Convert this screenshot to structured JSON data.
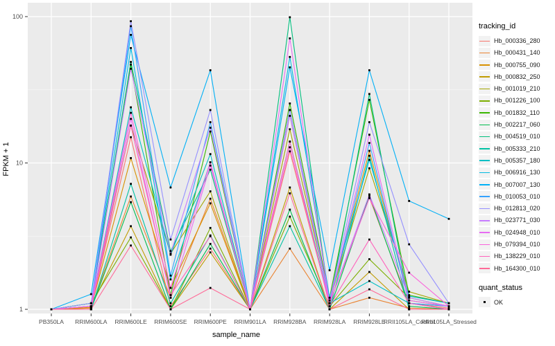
{
  "figure": {
    "panel_bg": "#EBEBEB",
    "grid_major_color": "#FFFFFF",
    "grid_minor_color": "#F7F7F7",
    "tick_label_color": "#4D4D4D",
    "tick_mark_color": "#333333",
    "point_color": "#000000"
  },
  "axes": {
    "x_title": "sample_name",
    "y_title": "FPKM + 1",
    "y_tick_labels": [
      "1",
      "10",
      "100"
    ]
  },
  "legend": {
    "tracking_title": "tracking_id",
    "quant_title": "quant_status",
    "quant_items": [
      {
        "label": "OK",
        "marker": "black-square"
      }
    ]
  },
  "chart_data": {
    "type": "line",
    "title": "",
    "xlabel": "sample_name",
    "ylabel": "FPKM + 1",
    "y_scale": "log10",
    "ylim": [
      1,
      100
    ],
    "y_major_ticks": [
      1,
      10,
      100
    ],
    "y_minor_ticks": [
      3.162,
      31.62
    ],
    "grid": "major-and-minor",
    "legend_position": "right",
    "marker": "small black square (quant_status OK)",
    "categories": [
      "PB350LA",
      "RRIM600LA",
      "RRIM600LE",
      "RRIM600SE",
      "RRIM600PE",
      "RRIM901LA",
      "RRIM928BA",
      "RRIM928LA",
      "RRIM928LE",
      "RRII105LA_Control",
      "RRII105LA_Stressed"
    ],
    "series": [
      {
        "name": "Hb_000336_280",
        "color": "#F8766D",
        "values": [
          1.0,
          1.02,
          15.0,
          1.05,
          2.6,
          1.0,
          12.0,
          1.1,
          5.8,
          1.1,
          1.02
        ]
      },
      {
        "name": "Hb_000431_140",
        "color": "#EA8331",
        "values": [
          1.0,
          1.02,
          5.9,
          1.2,
          5.7,
          1.0,
          2.6,
          1.0,
          1.2,
          1.02,
          1.0
        ]
      },
      {
        "name": "Hb_000755_090",
        "color": "#D89000",
        "values": [
          1.0,
          1.03,
          10.8,
          1.4,
          5.3,
          1.0,
          21.0,
          1.1,
          12.1,
          1.15,
          1.05
        ]
      },
      {
        "name": "Hb_000832_250",
        "color": "#C09B00",
        "values": [
          1.0,
          1.05,
          3.7,
          1.0,
          2.45,
          1.0,
          6.8,
          1.0,
          1.8,
          1.0,
          1.0
        ]
      },
      {
        "name": "Hb_001019_210",
        "color": "#A3A500",
        "values": [
          1.0,
          1.05,
          18.0,
          2.4,
          6.4,
          1.0,
          17.0,
          1.15,
          9.2,
          1.32,
          1.1
        ]
      },
      {
        "name": "Hb_001226_100",
        "color": "#7CAE00",
        "values": [
          1.0,
          1.1,
          3.1,
          1.0,
          3.6,
          1.0,
          4.3,
          1.05,
          2.2,
          1.2,
          1.05
        ]
      },
      {
        "name": "Hb_001832_110",
        "color": "#39B600",
        "values": [
          1.0,
          1.1,
          47.0,
          1.25,
          16.4,
          1.0,
          25.5,
          1.2,
          27.0,
          1.25,
          1.1
        ]
      },
      {
        "name": "Hb_002217_060",
        "color": "#00BB4E",
        "values": [
          1.0,
          1.0,
          5.4,
          1.0,
          2.8,
          1.0,
          4.8,
          1.0,
          6.0,
          1.05,
          1.0
        ]
      },
      {
        "name": "Hb_004519_010",
        "color": "#00BF7D",
        "values": [
          1.0,
          1.05,
          49.0,
          2.5,
          9.0,
          1.0,
          99.0,
          1.1,
          29.6,
          1.1,
          1.05
        ]
      },
      {
        "name": "Hb_005333_210",
        "color": "#00C1A3",
        "values": [
          1.0,
          1.0,
          7.2,
          1.1,
          3.2,
          1.0,
          3.7,
          1.0,
          11.2,
          1.0,
          1.0
        ]
      },
      {
        "name": "Hb_005357_180",
        "color": "#00BFC4",
        "values": [
          1.0,
          1.05,
          24.0,
          2.36,
          11.5,
          1.0,
          14.0,
          1.1,
          1.56,
          1.1,
          1.0
        ]
      },
      {
        "name": "Hb_006916_130",
        "color": "#00BAE0",
        "values": [
          1.0,
          1.1,
          61.0,
          1.6,
          10.1,
          1.0,
          53.0,
          1.2,
          10.5,
          1.23,
          1.1
        ]
      },
      {
        "name": "Hb_007007_130",
        "color": "#00B0F6",
        "values": [
          1.0,
          1.27,
          75.0,
          6.8,
          43.0,
          1.0,
          45.0,
          1.85,
          43.0,
          5.5,
          4.15
        ]
      },
      {
        "name": "Hb_010053_010",
        "color": "#35A2FF",
        "values": [
          1.0,
          1.05,
          86.0,
          1.7,
          19.0,
          1.0,
          23.0,
          1.1,
          13.7,
          1.1,
          1.05
        ]
      },
      {
        "name": "Hb_012813_020",
        "color": "#9590FF",
        "values": [
          1.0,
          1.1,
          93.0,
          3.0,
          23.0,
          1.0,
          23.0,
          1.15,
          19.0,
          2.78,
          1.1
        ]
      },
      {
        "name": "Hb_023771_030",
        "color": "#C77CFF",
        "values": [
          1.0,
          1.05,
          44.0,
          2.4,
          17.4,
          1.0,
          21.0,
          1.1,
          6.1,
          1.2,
          1.05
        ]
      },
      {
        "name": "Hb_024948_010",
        "color": "#E76BF3",
        "values": [
          1.0,
          1.05,
          20.0,
          1.2,
          9.6,
          1.0,
          71.0,
          1.1,
          15.6,
          1.15,
          1.05
        ]
      },
      {
        "name": "Hb_079394_010",
        "color": "#FA62DB",
        "values": [
          1.0,
          1.05,
          22.0,
          1.4,
          10.1,
          1.0,
          12.8,
          1.1,
          5.75,
          1.78,
          1.05
        ]
      },
      {
        "name": "Hb_138229_010",
        "color": "#FF62BC",
        "values": [
          1.0,
          1.0,
          18.0,
          1.25,
          3.16,
          1.0,
          14.0,
          1.05,
          3.0,
          1.1,
          1.0
        ]
      },
      {
        "name": "Hb_164300_010",
        "color": "#FF6A98",
        "values": [
          1.0,
          1.0,
          2.73,
          1.0,
          1.4,
          1.0,
          6.2,
          1.0,
          1.37,
          1.0,
          1.0
        ]
      }
    ]
  }
}
